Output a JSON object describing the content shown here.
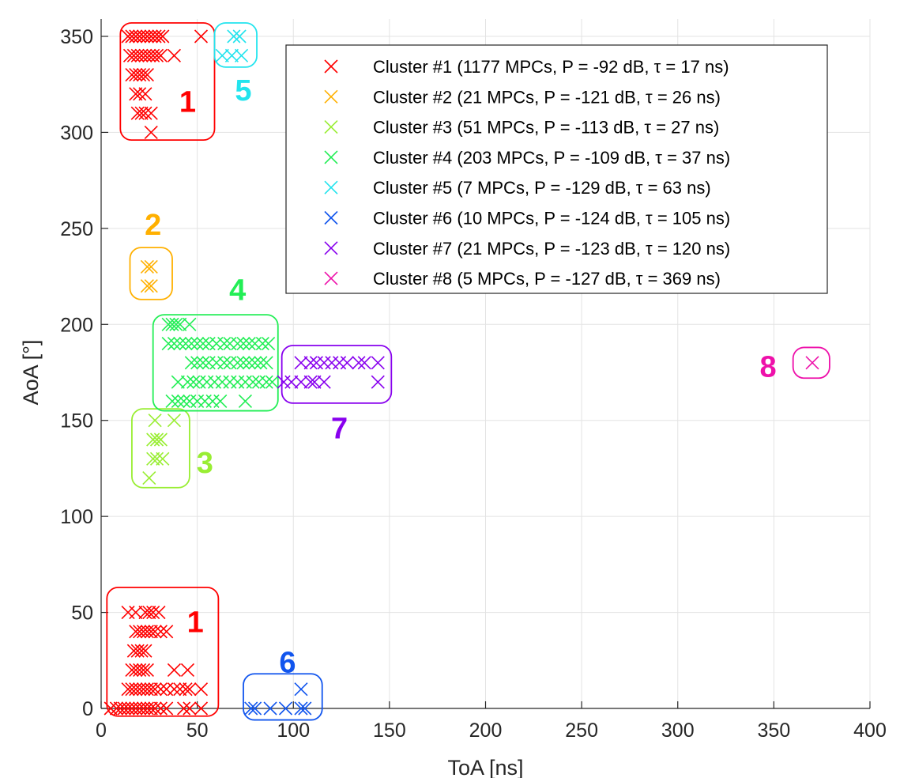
{
  "chart_data": {
    "type": "scatter",
    "title": "",
    "xlabel": "ToA [ns]",
    "ylabel": "AoA [°]",
    "xlim": [
      0,
      400
    ],
    "ylim": [
      0,
      360
    ],
    "xticks": [
      0,
      50,
      100,
      150,
      200,
      250,
      300,
      350,
      400
    ],
    "yticks": [
      0,
      50,
      100,
      150,
      200,
      250,
      300,
      350
    ],
    "grid": true,
    "legend_position": "top-right",
    "marker": "x",
    "series": [
      {
        "name": "Cluster #1 (1177 MPCs, P = -92 dB, τ = 17 ns)",
        "color": "#ff0000",
        "tag": "1",
        "points": [
          [
            14,
            350
          ],
          [
            16,
            350
          ],
          [
            18,
            350
          ],
          [
            20,
            350
          ],
          [
            22,
            350
          ],
          [
            24,
            350
          ],
          [
            26,
            350
          ],
          [
            28,
            350
          ],
          [
            30,
            350
          ],
          [
            32,
            350
          ],
          [
            52,
            350
          ],
          [
            15,
            340
          ],
          [
            17,
            340
          ],
          [
            19,
            340
          ],
          [
            21,
            340
          ],
          [
            23,
            340
          ],
          [
            25,
            340
          ],
          [
            27,
            340
          ],
          [
            29,
            340
          ],
          [
            31,
            340
          ],
          [
            38,
            340
          ],
          [
            16,
            330
          ],
          [
            18,
            330
          ],
          [
            20,
            330
          ],
          [
            22,
            330
          ],
          [
            24,
            330
          ],
          [
            18,
            320
          ],
          [
            20,
            320
          ],
          [
            23,
            320
          ],
          [
            19,
            310
          ],
          [
            21,
            310
          ],
          [
            23,
            310
          ],
          [
            26,
            310
          ],
          [
            26,
            300
          ],
          [
            14,
            50
          ],
          [
            18,
            50
          ],
          [
            23,
            50
          ],
          [
            25,
            50
          ],
          [
            27,
            50
          ],
          [
            30,
            50
          ],
          [
            18,
            40
          ],
          [
            20,
            40
          ],
          [
            22,
            40
          ],
          [
            24,
            40
          ],
          [
            26,
            40
          ],
          [
            28,
            40
          ],
          [
            31,
            40
          ],
          [
            34,
            40
          ],
          [
            17,
            30
          ],
          [
            19,
            30
          ],
          [
            21,
            30
          ],
          [
            23,
            30
          ],
          [
            16,
            20
          ],
          [
            18,
            20
          ],
          [
            20,
            20
          ],
          [
            22,
            20
          ],
          [
            24,
            20
          ],
          [
            38,
            20
          ],
          [
            45,
            20
          ],
          [
            14,
            10
          ],
          [
            16,
            10
          ],
          [
            18,
            10
          ],
          [
            20,
            10
          ],
          [
            22,
            10
          ],
          [
            24,
            10
          ],
          [
            26,
            10
          ],
          [
            28,
            10
          ],
          [
            31,
            10
          ],
          [
            34,
            10
          ],
          [
            38,
            10
          ],
          [
            41,
            10
          ],
          [
            44,
            10
          ],
          [
            46,
            10
          ],
          [
            52,
            10
          ],
          [
            5,
            0
          ],
          [
            8,
            0
          ],
          [
            10,
            0
          ],
          [
            12,
            0
          ],
          [
            14,
            0
          ],
          [
            16,
            0
          ],
          [
            18,
            0
          ],
          [
            20,
            0
          ],
          [
            22,
            0
          ],
          [
            24,
            0
          ],
          [
            26,
            0
          ],
          [
            28,
            0
          ],
          [
            31,
            0
          ],
          [
            34,
            0
          ],
          [
            43,
            0
          ],
          [
            46,
            0
          ],
          [
            52,
            0
          ]
        ]
      },
      {
        "name": "Cluster #2 (21 MPCs, P = -121 dB, τ = 26 ns)",
        "color": "#ffb000",
        "tag": "2",
        "points": [
          [
            24,
            230
          ],
          [
            26,
            230
          ],
          [
            24,
            220
          ],
          [
            26,
            220
          ]
        ]
      },
      {
        "name": "Cluster #3 (51 MPCs, P = -113 dB, τ = 27 ns)",
        "color": "#99ee33",
        "tag": "3",
        "points": [
          [
            28,
            150
          ],
          [
            38,
            150
          ],
          [
            27,
            140
          ],
          [
            29,
            140
          ],
          [
            31,
            140
          ],
          [
            27,
            130
          ],
          [
            29,
            130
          ],
          [
            32,
            130
          ],
          [
            25,
            120
          ]
        ]
      },
      {
        "name": "Cluster #4 (203 MPCs, P = -109 dB, τ = 37 ns)",
        "color": "#22ee55",
        "tag": "4",
        "points": [
          [
            35,
            200
          ],
          [
            37,
            200
          ],
          [
            39,
            200
          ],
          [
            41,
            200
          ],
          [
            46,
            200
          ],
          [
            35,
            190
          ],
          [
            38,
            190
          ],
          [
            41,
            190
          ],
          [
            44,
            190
          ],
          [
            47,
            190
          ],
          [
            50,
            190
          ],
          [
            53,
            190
          ],
          [
            56,
            190
          ],
          [
            60,
            190
          ],
          [
            64,
            190
          ],
          [
            67,
            190
          ],
          [
            71,
            190
          ],
          [
            74,
            190
          ],
          [
            77,
            190
          ],
          [
            80,
            190
          ],
          [
            84,
            190
          ],
          [
            87,
            190
          ],
          [
            47,
            180
          ],
          [
            50,
            180
          ],
          [
            53,
            180
          ],
          [
            56,
            180
          ],
          [
            60,
            180
          ],
          [
            64,
            180
          ],
          [
            67,
            180
          ],
          [
            71,
            180
          ],
          [
            74,
            180
          ],
          [
            77,
            180
          ],
          [
            80,
            180
          ],
          [
            83,
            180
          ],
          [
            86,
            180
          ],
          [
            40,
            170
          ],
          [
            45,
            170
          ],
          [
            48,
            170
          ],
          [
            51,
            170
          ],
          [
            55,
            170
          ],
          [
            59,
            170
          ],
          [
            63,
            170
          ],
          [
            67,
            170
          ],
          [
            71,
            170
          ],
          [
            75,
            170
          ],
          [
            79,
            170
          ],
          [
            82,
            170
          ],
          [
            86,
            170
          ],
          [
            89,
            170
          ],
          [
            37,
            160
          ],
          [
            40,
            160
          ],
          [
            43,
            160
          ],
          [
            46,
            160
          ],
          [
            50,
            160
          ],
          [
            54,
            160
          ],
          [
            58,
            160
          ],
          [
            62,
            160
          ],
          [
            75,
            160
          ]
        ]
      },
      {
        "name": "Cluster #5 (7 MPCs, P = -129 dB, τ = 63 ns)",
        "color": "#22e4ee",
        "tag": "5",
        "points": [
          [
            69,
            350
          ],
          [
            72,
            350
          ],
          [
            63,
            340
          ],
          [
            68,
            340
          ],
          [
            73,
            340
          ]
        ]
      },
      {
        "name": "Cluster #6 (10 MPCs, P = -124 dB, τ = 105 ns)",
        "color": "#1155ee",
        "tag": "6",
        "points": [
          [
            78,
            0
          ],
          [
            80,
            0
          ],
          [
            88,
            0
          ],
          [
            96,
            0
          ],
          [
            104,
            0
          ],
          [
            106,
            0
          ],
          [
            104,
            10
          ]
        ]
      },
      {
        "name": "Cluster #7 (21 MPCs, P = -123 dB, τ = 120 ns)",
        "color": "#8800ee",
        "tag": "7",
        "points": [
          [
            104,
            180
          ],
          [
            109,
            180
          ],
          [
            112,
            180
          ],
          [
            116,
            180
          ],
          [
            120,
            180
          ],
          [
            124,
            180
          ],
          [
            128,
            180
          ],
          [
            134,
            180
          ],
          [
            137,
            180
          ],
          [
            144,
            180
          ],
          [
            95,
            170
          ],
          [
            99,
            170
          ],
          [
            104,
            170
          ],
          [
            109,
            170
          ],
          [
            111,
            170
          ],
          [
            116,
            170
          ],
          [
            144,
            170
          ]
        ]
      },
      {
        "name": "Cluster #8 (5 MPCs, P = -127 dB, τ = 369 ns)",
        "color": "#ee11aa",
        "tag": "8",
        "points": [
          [
            370,
            180
          ]
        ]
      }
    ],
    "cluster_boxes": [
      {
        "tag": "1",
        "color": "#ff0000",
        "x0": 10,
        "x1": 59,
        "y0": 296,
        "y1": 357,
        "label_x": 45,
        "label_y": 316
      },
      {
        "tag": "1",
        "color": "#ff0000",
        "x0": 3,
        "x1": 61,
        "y0": -4,
        "y1": 63,
        "label_x": 49,
        "label_y": 45
      },
      {
        "tag": "2",
        "color": "#ffb000",
        "x0": 15,
        "x1": 37,
        "y0": 213,
        "y1": 240,
        "label_x": 27,
        "label_y": 252
      },
      {
        "tag": "3",
        "color": "#99ee33",
        "x0": 16,
        "x1": 46,
        "y0": 115,
        "y1": 156,
        "label_x": 54,
        "label_y": 128
      },
      {
        "tag": "4",
        "color": "#22ee55",
        "x0": 27,
        "x1": 92,
        "y0": 155,
        "y1": 205,
        "label_x": 71,
        "label_y": 218
      },
      {
        "tag": "5",
        "color": "#22e4ee",
        "x0": 59,
        "x1": 81,
        "y0": 334,
        "y1": 357,
        "label_x": 74,
        "label_y": 322
      },
      {
        "tag": "6",
        "color": "#1155ee",
        "x0": 74,
        "x1": 115,
        "y0": -6,
        "y1": 18,
        "label_x": 97,
        "label_y": 24
      },
      {
        "tag": "7",
        "color": "#8800ee",
        "x0": 94,
        "x1": 151,
        "y0": 159,
        "y1": 189,
        "label_x": 124,
        "label_y": 146
      },
      {
        "tag": "8",
        "color": "#ee11aa",
        "x0": 360,
        "x1": 379,
        "y0": 172,
        "y1": 188,
        "label_x": 347,
        "label_y": 178
      }
    ]
  }
}
